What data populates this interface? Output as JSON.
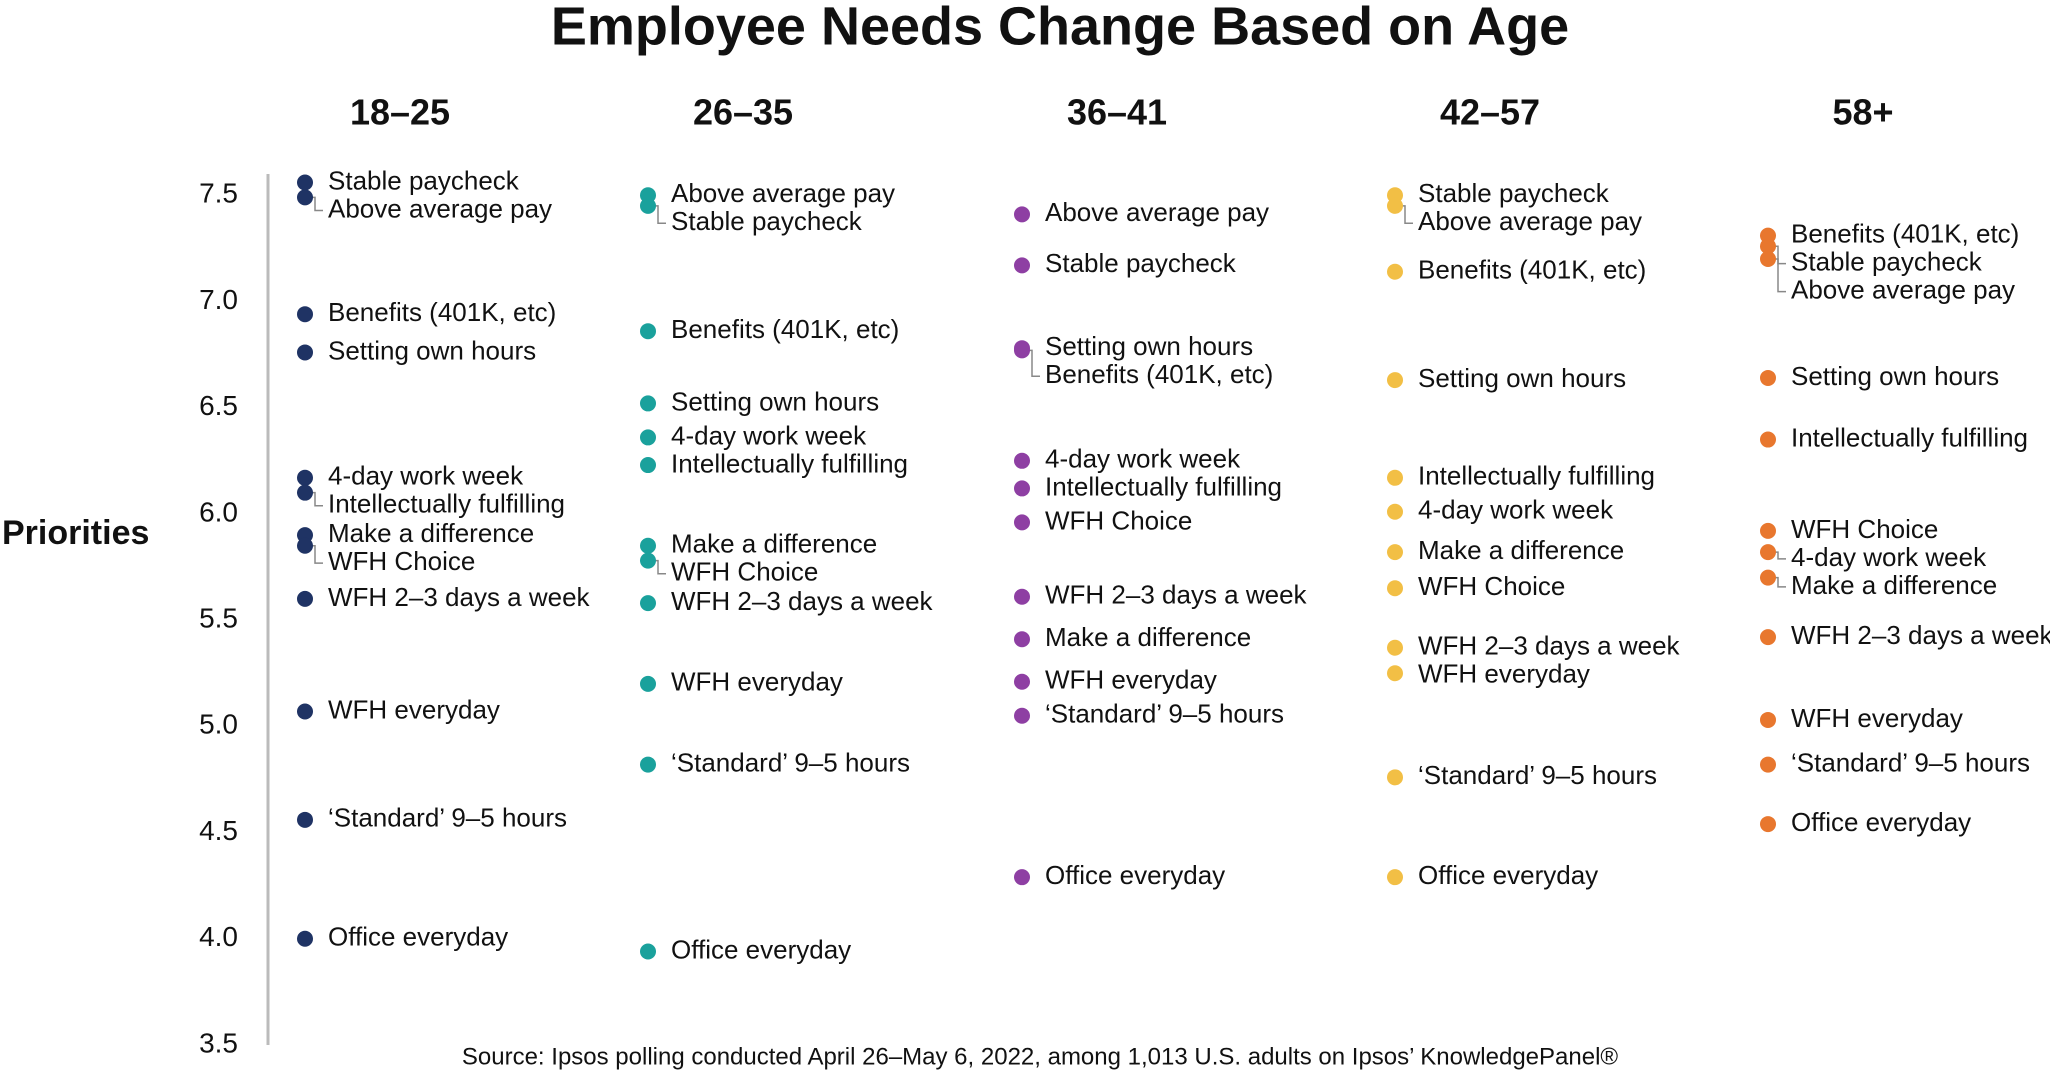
{
  "chart_data": {
    "type": "dot",
    "title": "Employee Needs Change Based on Age",
    "y_label": "Priorities",
    "source": "Source: Ipsos polling conducted April 26–May 6, 2022, among 1,013 U.S. adults on Ipsos’ KnowledgePanel®",
    "ylim": [
      3.5,
      7.6
    ],
    "yticks": [
      3.5,
      4.0,
      4.5,
      5.0,
      5.5,
      6.0,
      6.5,
      7.0,
      7.5
    ],
    "series": [
      {
        "name": "18–25",
        "color": "#1f3364",
        "labels": [
          "Stable paycheck",
          "Above average pay",
          "Benefits (401K, etc)",
          "Setting own hours",
          "4-day work week",
          "Intellectually fulfilling",
          "Make a difference",
          "WFH Choice",
          "WFH 2–3 days a week",
          "WFH everyday",
          "‘Standard’ 9–5 hours",
          "Office everyday"
        ],
        "values": [
          7.56,
          7.49,
          6.94,
          6.76,
          6.17,
          6.1,
          5.9,
          5.85,
          5.6,
          5.07,
          4.56,
          4.0
        ]
      },
      {
        "name": "26–35",
        "color": "#1aa19c",
        "labels": [
          "Above average pay",
          "Stable paycheck",
          "Benefits (401K, etc)",
          "Setting own hours",
          "4-day work week",
          "Intellectually fulfilling",
          "Make a difference",
          "WFH Choice",
          "WFH 2–3 days a week",
          "WFH everyday",
          "‘Standard’ 9–5 hours",
          "Office everyday"
        ],
        "values": [
          7.5,
          7.45,
          6.86,
          6.52,
          6.36,
          6.23,
          5.85,
          5.78,
          5.58,
          5.2,
          4.82,
          3.94
        ]
      },
      {
        "name": "36–41",
        "color": "#8e3fa3",
        "labels": [
          "Above average pay",
          "Stable paycheck",
          "Setting own hours",
          "Benefits (401K, etc)",
          "4-day work week",
          "Intellectually fulfilling",
          "WFH Choice",
          "WFH 2–3 days a week",
          "Make a difference",
          "WFH everyday",
          "‘Standard’ 9–5 hours",
          "Office everyday"
        ],
        "values": [
          7.41,
          7.17,
          6.78,
          6.77,
          6.25,
          6.12,
          5.96,
          5.61,
          5.41,
          5.21,
          5.05,
          4.29
        ]
      },
      {
        "name": "42–57",
        "color": "#f2bf45",
        "labels": [
          "Stable paycheck",
          "Above average pay",
          "Benefits (401K, etc)",
          "Setting own hours",
          "Intellectually fulfilling",
          "4-day work week",
          "Make a difference",
          "WFH Choice",
          "WFH 2–3 days a week",
          "WFH everyday",
          "‘Standard’ 9–5 hours",
          "Office everyday"
        ],
        "values": [
          7.5,
          7.45,
          7.14,
          6.63,
          6.17,
          6.01,
          5.82,
          5.65,
          5.37,
          5.25,
          4.76,
          4.29
        ]
      },
      {
        "name": "58+",
        "color": "#e8772e",
        "labels": [
          "Benefits (401K, etc)",
          "Stable paycheck",
          "Above average pay",
          "Setting own hours",
          "Intellectually fulfilling",
          "WFH Choice",
          "4-day work week",
          "Make a difference",
          "WFH 2–3 days a week",
          "WFH everyday",
          "‘Standard’ 9–5 hours",
          "Office everyday"
        ],
        "values": [
          7.31,
          7.26,
          7.2,
          6.64,
          6.35,
          5.92,
          5.82,
          5.7,
          5.42,
          5.03,
          4.82,
          4.54
        ]
      }
    ]
  }
}
